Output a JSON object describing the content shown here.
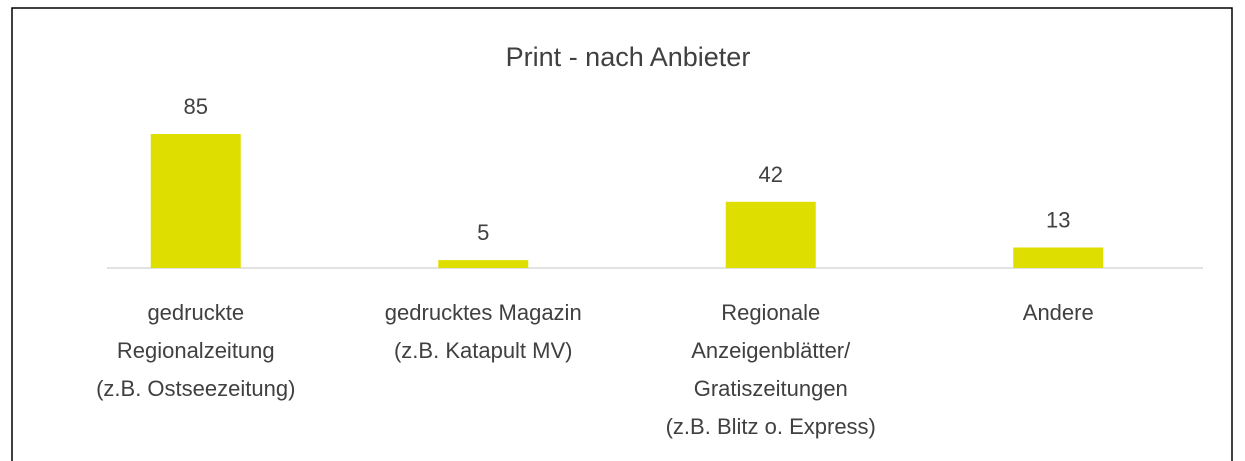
{
  "chart_data": {
    "type": "bar",
    "title": "Print - nach Anbieter",
    "categories": [
      "gedruckte\nRegionalzeitung\n(z.B. Ostseezeitung)",
      "gedrucktes Magazin\n(z.B. Katapult MV)",
      "Regionale\nAnzeigenblätter/\nGratiszeitungen\n(z.B. Blitz o. Express)",
      "Andere"
    ],
    "values": [
      85,
      5,
      42,
      13
    ],
    "color": "#dede00"
  }
}
